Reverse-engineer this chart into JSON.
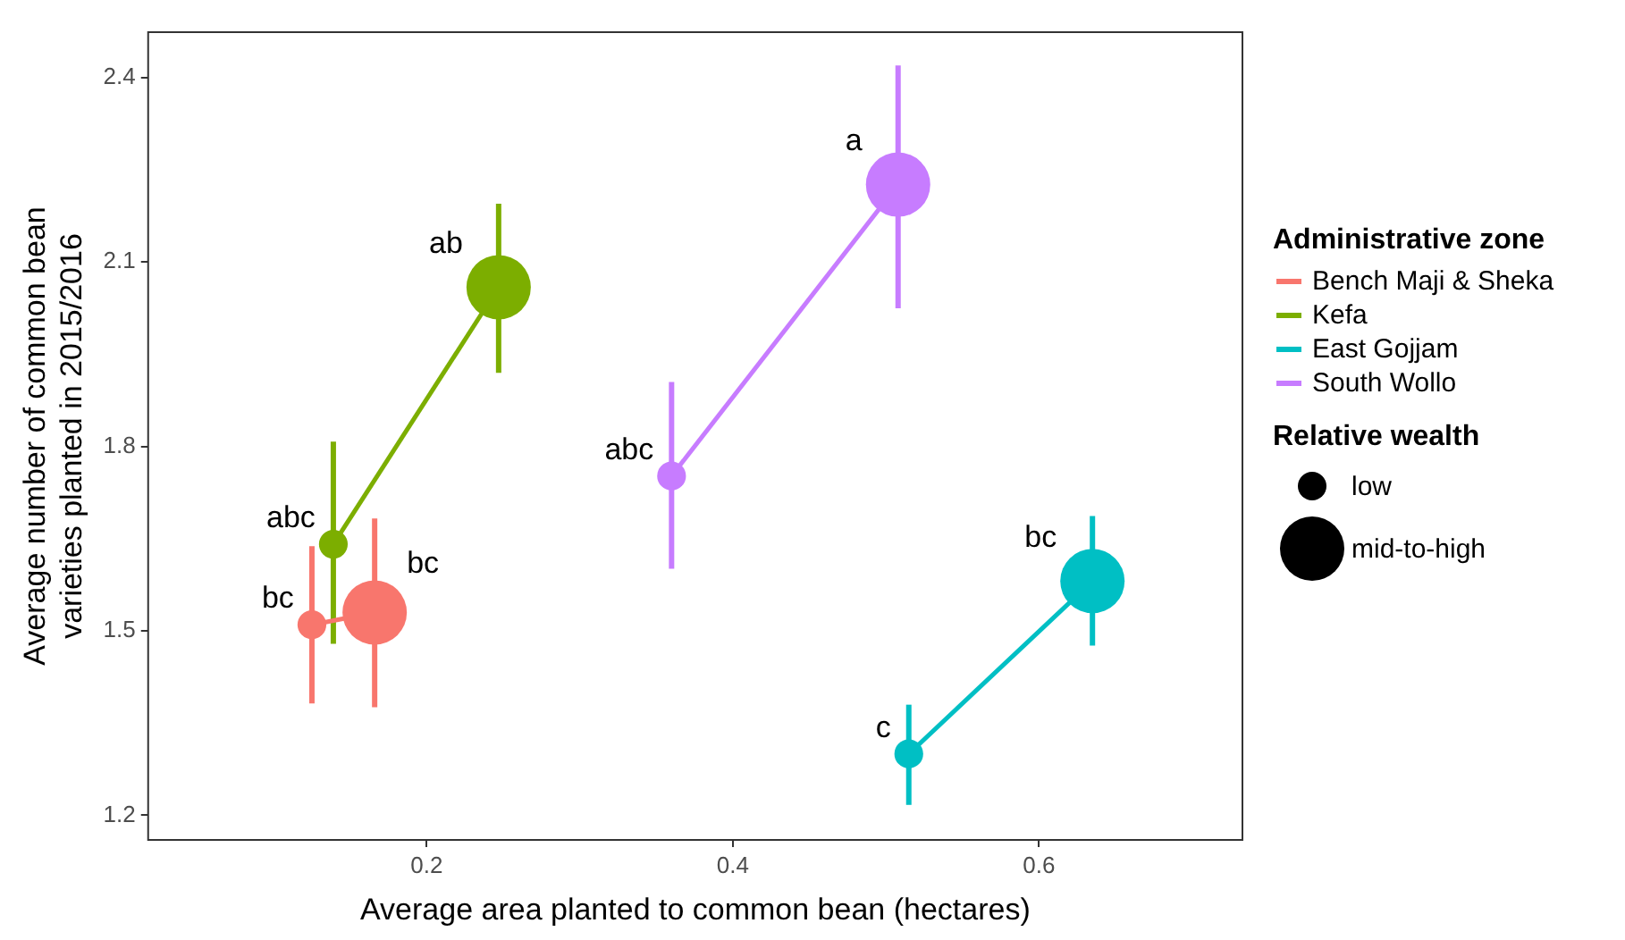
{
  "chart_data": {
    "type": "bubble",
    "xlabel": "Average area planted to common bean (hectares)",
    "ylabel": "Average number of common bean varieties planted in 2015/2016",
    "legend_title": "Administrative zone",
    "xlim": [
      0.018,
      0.733
    ],
    "xticks": [
      0.2,
      0.4,
      0.6
    ],
    "ylim": [
      1.16,
      2.474
    ],
    "yticks": [
      1.2,
      1.5,
      1.8,
      2.1,
      2.4
    ],
    "grid": false,
    "legend": "right",
    "marker": "circle",
    "line_style": "solid",
    "size_legend": [
      {
        "value": 0.2,
        "label": "low"
      },
      {
        "value": 1,
        "label": "mid-to-high"
      }
    ],
    "series": [
      {
        "name": "Bench Maji & Sheka",
        "color": "#f8766d",
        "x": [
          0.125,
          0.166
        ],
        "values": [
          1.51,
          1.53
        ],
        "sizes": [
          0.2,
          1
        ],
        "errors": [
          [
            1.382,
            1.638
          ],
          [
            1.376,
            1.683
          ]
        ]
      },
      {
        "name": "Kefa",
        "color": "#7cae00",
        "x": [
          0.139,
          0.247
        ],
        "values": [
          1.641,
          2.059
        ],
        "sizes": [
          0.2,
          1
        ],
        "errors": [
          [
            1.479,
            1.808
          ],
          [
            1.92,
            2.195
          ]
        ]
      },
      {
        "name": "East Gojjam",
        "color": "#00bfc4",
        "x": [
          0.515,
          0.635
        ],
        "values": [
          1.3,
          1.581
        ],
        "sizes": [
          0.2,
          1
        ],
        "errors": [
          [
            1.217,
            1.38
          ],
          [
            1.476,
            1.687
          ]
        ]
      },
      {
        "name": "South Wollo",
        "color": "#c77cff",
        "x": [
          0.36,
          0.508
        ],
        "values": [
          1.752,
          2.226
        ],
        "sizes": [
          0.2,
          1
        ],
        "errors": [
          [
            1.601,
            1.905
          ],
          [
            2.025,
            2.42
          ]
        ]
      }
    ],
    "annotations": [
      {
        "text": "bc",
        "x": 0.125,
        "y": 1.51
      },
      {
        "text": "bc",
        "x": 0.166,
        "y": 1.53
      },
      {
        "text": "abc",
        "x": 0.139,
        "y": 1.641
      },
      {
        "text": "ab",
        "x": 0.247,
        "y": 2.059
      },
      {
        "text": "c",
        "x": 0.515,
        "y": 1.3
      },
      {
        "text": "bc",
        "x": 0.635,
        "y": 1.581
      },
      {
        "text": "abc",
        "x": 0.36,
        "y": 1.752
      },
      {
        "text": "a",
        "x": 0.508,
        "y": 2.226
      },
      "Relative wealth"
    ]
  }
}
